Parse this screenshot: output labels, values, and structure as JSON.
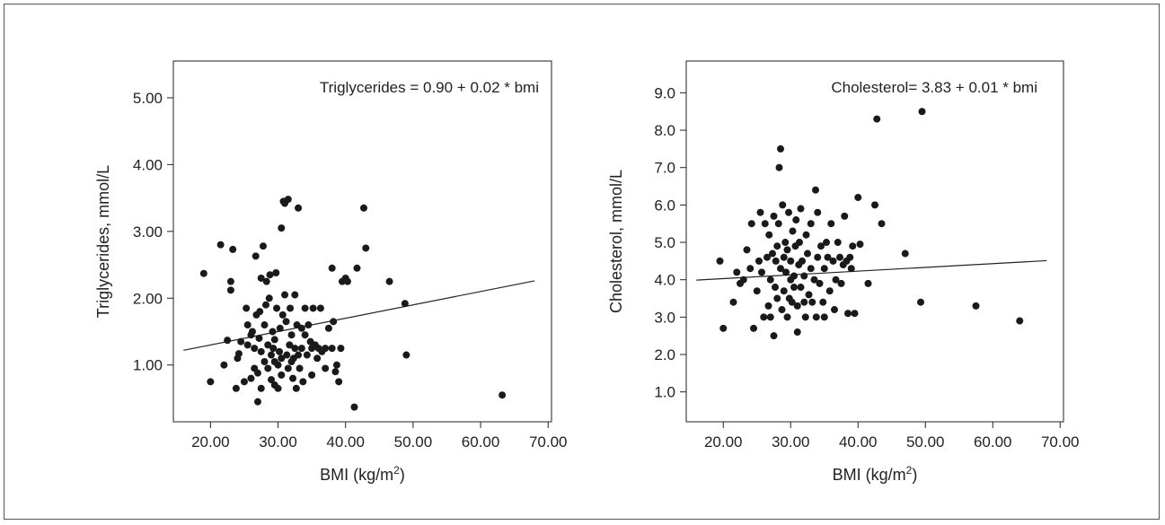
{
  "colors": {
    "frame": "#555555",
    "axis": "#222222",
    "point": "#1a1a1a",
    "fit_line": "#222222"
  },
  "chart_data": [
    {
      "type": "scatter",
      "equation": "Triglycerides = 0.90 + 0.02 * bmi",
      "ylabel": "Triglycerides, mmol/L",
      "xlabel": "BMI (kg/m²)",
      "xlim": [
        14.5,
        70.5
      ],
      "ylim": [
        0.15,
        5.55
      ],
      "xticks": [
        "20.00",
        "30.00",
        "40.00",
        "50.00",
        "60.00",
        "70.00"
      ],
      "xtick_values": [
        20,
        30,
        40,
        50,
        60,
        70
      ],
      "yticks": [
        "1.00",
        "2.00",
        "3.00",
        "4.00",
        "5.00"
      ],
      "ytick_values": [
        1,
        2,
        3,
        4,
        5
      ],
      "fit_line": {
        "intercept": 0.9,
        "slope": 0.02,
        "x_range": [
          16,
          68
        ]
      },
      "points": [
        [
          19.0,
          2.37
        ],
        [
          20.0,
          0.75
        ],
        [
          21.5,
          2.8
        ],
        [
          22.0,
          1.0
        ],
        [
          22.5,
          1.37
        ],
        [
          23.0,
          2.25
        ],
        [
          23.0,
          2.12
        ],
        [
          23.3,
          2.73
        ],
        [
          23.8,
          0.65
        ],
        [
          24.0,
          1.1
        ],
        [
          24.2,
          1.17
        ],
        [
          24.5,
          1.35
        ],
        [
          25.0,
          0.75
        ],
        [
          25.3,
          1.85
        ],
        [
          25.5,
          1.6
        ],
        [
          25.5,
          1.3
        ],
        [
          26.0,
          0.8
        ],
        [
          26.0,
          1.45
        ],
        [
          26.2,
          1.5
        ],
        [
          26.5,
          0.95
        ],
        [
          26.5,
          1.25
        ],
        [
          26.7,
          2.63
        ],
        [
          26.8,
          1.75
        ],
        [
          27.0,
          0.45
        ],
        [
          27.0,
          0.88
        ],
        [
          27.2,
          1.4
        ],
        [
          27.3,
          1.8
        ],
        [
          27.5,
          0.65
        ],
        [
          27.5,
          1.2
        ],
        [
          27.5,
          2.3
        ],
        [
          27.8,
          2.78
        ],
        [
          28.0,
          1.05
        ],
        [
          28.0,
          1.6
        ],
        [
          28.2,
          1.9
        ],
        [
          28.3,
          2.25
        ],
        [
          28.5,
          0.95
        ],
        [
          28.5,
          1.3
        ],
        [
          28.7,
          2.0
        ],
        [
          28.8,
          2.35
        ],
        [
          29.0,
          0.78
        ],
        [
          29.0,
          1.15
        ],
        [
          29.2,
          1.5
        ],
        [
          29.3,
          1.25
        ],
        [
          29.5,
          0.7
        ],
        [
          29.5,
          1.05
        ],
        [
          29.5,
          1.38
        ],
        [
          29.7,
          2.38
        ],
        [
          29.8,
          1.85
        ],
        [
          30.0,
          0.65
        ],
        [
          30.0,
          1.0
        ],
        [
          30.2,
          1.2
        ],
        [
          30.3,
          1.55
        ],
        [
          30.5,
          3.05
        ],
        [
          30.5,
          1.1
        ],
        [
          30.5,
          0.85
        ],
        [
          30.7,
          1.75
        ],
        [
          30.8,
          3.45
        ],
        [
          31.0,
          3.42
        ],
        [
          31.0,
          2.05
        ],
        [
          31.2,
          1.65
        ],
        [
          31.3,
          1.15
        ],
        [
          31.5,
          0.95
        ],
        [
          31.5,
          3.48
        ],
        [
          31.7,
          1.3
        ],
        [
          31.8,
          1.85
        ],
        [
          32.0,
          1.05
        ],
        [
          32.0,
          1.45
        ],
        [
          32.2,
          0.8
        ],
        [
          32.3,
          1.1
        ],
        [
          32.5,
          2.05
        ],
        [
          32.5,
          1.25
        ],
        [
          32.7,
          0.65
        ],
        [
          32.8,
          1.6
        ],
        [
          33.0,
          3.35
        ],
        [
          33.0,
          1.15
        ],
        [
          33.2,
          0.95
        ],
        [
          33.5,
          1.55
        ],
        [
          33.5,
          1.25
        ],
        [
          33.7,
          0.75
        ],
        [
          34.0,
          1.85
        ],
        [
          34.0,
          1.45
        ],
        [
          34.3,
          1.15
        ],
        [
          34.5,
          1.6
        ],
        [
          34.8,
          1.35
        ],
        [
          35.0,
          0.85
        ],
        [
          35.0,
          1.25
        ],
        [
          35.2,
          1.85
        ],
        [
          35.5,
          1.3
        ],
        [
          35.8,
          1.1
        ],
        [
          36.0,
          1.25
        ],
        [
          36.3,
          1.85
        ],
        [
          36.5,
          1.2
        ],
        [
          37.0,
          1.25
        ],
        [
          37.0,
          0.95
        ],
        [
          37.5,
          1.55
        ],
        [
          38.0,
          1.25
        ],
        [
          38.0,
          2.45
        ],
        [
          38.2,
          1.65
        ],
        [
          38.5,
          0.9
        ],
        [
          38.7,
          1.0
        ],
        [
          39.0,
          0.75
        ],
        [
          39.3,
          1.25
        ],
        [
          39.5,
          2.25
        ],
        [
          40.0,
          2.3
        ],
        [
          40.3,
          2.25
        ],
        [
          41.3,
          0.37
        ],
        [
          41.7,
          2.45
        ],
        [
          42.7,
          3.35
        ],
        [
          43.0,
          2.75
        ],
        [
          46.5,
          2.25
        ],
        [
          48.8,
          1.92
        ],
        [
          49.0,
          1.15
        ],
        [
          63.2,
          0.55
        ]
      ]
    },
    {
      "type": "scatter",
      "equation": "Cholesterol= 3.83 + 0.01 * bmi",
      "ylabel": "Cholesterol, mmol/L",
      "xlabel": "BMI (kg/m²)",
      "xlim": [
        14.5,
        70.5
      ],
      "ylim": [
        0.2,
        9.85
      ],
      "xticks": [
        "20.00",
        "30.00",
        "40.00",
        "50.00",
        "60.00",
        "70.00"
      ],
      "xtick_values": [
        20,
        30,
        40,
        50,
        60,
        70
      ],
      "yticks": [
        "1.0",
        "2.0",
        "3.0",
        "4.0",
        "5.0",
        "6.0",
        "7.0",
        "8.0",
        "9.0"
      ],
      "ytick_values": [
        1,
        2,
        3,
        4,
        5,
        6,
        7,
        8,
        9
      ],
      "fit_line": {
        "intercept": 3.83,
        "slope": 0.01,
        "x_range": [
          16,
          68
        ]
      },
      "points": [
        [
          19.5,
          4.5
        ],
        [
          20.0,
          2.7
        ],
        [
          21.5,
          3.4
        ],
        [
          22.0,
          4.2
        ],
        [
          22.5,
          3.9
        ],
        [
          23.0,
          4.0
        ],
        [
          23.5,
          4.8
        ],
        [
          24.0,
          4.3
        ],
        [
          24.2,
          5.5
        ],
        [
          24.5,
          2.7
        ],
        [
          25.0,
          3.7
        ],
        [
          25.3,
          4.5
        ],
        [
          25.5,
          5.8
        ],
        [
          25.7,
          4.2
        ],
        [
          26.0,
          3.0
        ],
        [
          26.2,
          5.5
        ],
        [
          26.5,
          4.6
        ],
        [
          26.7,
          3.3
        ],
        [
          26.8,
          5.2
        ],
        [
          27.0,
          4.0
        ],
        [
          27.0,
          3.0
        ],
        [
          27.3,
          4.7
        ],
        [
          27.5,
          2.5
        ],
        [
          27.5,
          5.7
        ],
        [
          27.7,
          3.8
        ],
        [
          27.8,
          4.5
        ],
        [
          28.0,
          3.5
        ],
        [
          28.0,
          4.9
        ],
        [
          28.2,
          5.5
        ],
        [
          28.3,
          7.0
        ],
        [
          28.5,
          7.5
        ],
        [
          28.5,
          4.3
        ],
        [
          28.7,
          3.2
        ],
        [
          28.8,
          6.0
        ],
        [
          29.0,
          4.6
        ],
        [
          29.0,
          3.7
        ],
        [
          29.2,
          5.0
        ],
        [
          29.3,
          4.2
        ],
        [
          29.5,
          3.0
        ],
        [
          29.5,
          4.8
        ],
        [
          29.7,
          5.8
        ],
        [
          29.8,
          3.5
        ],
        [
          30.0,
          4.0
        ],
        [
          30.0,
          4.5
        ],
        [
          30.2,
          3.4
        ],
        [
          30.3,
          5.3
        ],
        [
          30.5,
          4.1
        ],
        [
          30.5,
          3.8
        ],
        [
          30.7,
          4.9
        ],
        [
          30.8,
          5.6
        ],
        [
          31.0,
          3.3
        ],
        [
          31.0,
          2.6
        ],
        [
          31.2,
          4.4
        ],
        [
          31.3,
          5.0
        ],
        [
          31.5,
          3.8
        ],
        [
          31.5,
          5.9
        ],
        [
          31.7,
          4.5
        ],
        [
          32.0,
          3.4
        ],
        [
          32.0,
          4.1
        ],
        [
          32.2,
          3.0
        ],
        [
          32.3,
          5.2
        ],
        [
          32.5,
          4.7
        ],
        [
          32.7,
          3.6
        ],
        [
          33.0,
          4.3
        ],
        [
          33.0,
          5.5
        ],
        [
          33.2,
          3.4
        ],
        [
          33.5,
          4.0
        ],
        [
          33.7,
          6.4
        ],
        [
          33.8,
          3.0
        ],
        [
          34.0,
          4.6
        ],
        [
          34.0,
          5.8
        ],
        [
          34.3,
          3.9
        ],
        [
          34.5,
          4.9
        ],
        [
          34.8,
          3.4
        ],
        [
          35.0,
          4.3
        ],
        [
          35.0,
          3.0
        ],
        [
          35.3,
          5.0
        ],
        [
          35.5,
          4.6
        ],
        [
          35.8,
          3.7
        ],
        [
          36.0,
          5.5
        ],
        [
          36.3,
          4.5
        ],
        [
          36.5,
          3.2
        ],
        [
          36.7,
          4.0
        ],
        [
          37.0,
          5.0
        ],
        [
          37.3,
          4.6
        ],
        [
          37.5,
          3.9
        ],
        [
          37.8,
          4.4
        ],
        [
          38.0,
          5.7
        ],
        [
          38.3,
          4.5
        ],
        [
          38.5,
          3.1
        ],
        [
          38.8,
          4.6
        ],
        [
          39.0,
          4.3
        ],
        [
          39.2,
          4.9
        ],
        [
          39.5,
          3.1
        ],
        [
          40.0,
          6.2
        ],
        [
          40.3,
          4.95
        ],
        [
          41.5,
          3.9
        ],
        [
          42.5,
          6.0
        ],
        [
          42.8,
          8.3
        ],
        [
          43.5,
          5.5
        ],
        [
          47.0,
          4.7
        ],
        [
          49.3,
          3.4
        ],
        [
          49.5,
          8.5
        ],
        [
          57.5,
          3.3
        ],
        [
          64.0,
          2.9
        ]
      ]
    }
  ]
}
